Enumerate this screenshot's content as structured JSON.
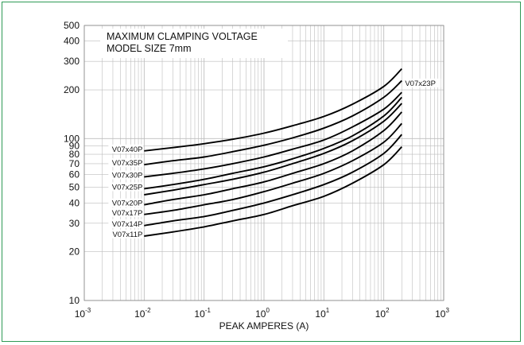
{
  "chart_data": {
    "type": "line",
    "title": "MAXIMUM CLAMPING VOLTAGE",
    "subtitle": "MODEL SIZE 7mm",
    "xlabel": "PEAK AMPERES (A)",
    "ylabel": "",
    "x_scale": "log",
    "y_scale": "log",
    "xlim": [
      0.001,
      1000
    ],
    "ylim": [
      10,
      500
    ],
    "x_ticks": [
      {
        "base": "10",
        "exp": "-3",
        "value": 0.001
      },
      {
        "base": "10",
        "exp": "-2",
        "value": 0.01
      },
      {
        "base": "10",
        "exp": "-1",
        "value": 0.1
      },
      {
        "base": "10",
        "exp": "0",
        "value": 1
      },
      {
        "base": "10",
        "exp": "1",
        "value": 10
      },
      {
        "base": "10",
        "exp": "2",
        "value": 100
      },
      {
        "base": "10",
        "exp": "3",
        "value": 1000
      }
    ],
    "y_ticks": [
      {
        "label": "10",
        "value": 10
      },
      {
        "label": "20",
        "value": 20
      },
      {
        "label": "30",
        "value": 30
      },
      {
        "label": "40",
        "value": 40
      },
      {
        "label": "50",
        "value": 50
      },
      {
        "label": "60",
        "value": 60
      },
      {
        "label": "70",
        "value": 70
      },
      {
        "label": "80",
        "value": 80
      },
      {
        "label": "90",
        "value": 90
      },
      {
        "label": "100",
        "value": 100
      },
      {
        "label": "200",
        "value": 200
      },
      {
        "label": "300",
        "value": 300
      },
      {
        "label": "400",
        "value": 400
      },
      {
        "label": "500",
        "value": 500
      }
    ],
    "grid": true,
    "series": [
      {
        "name": "V07x40P",
        "label_side": "left",
        "x": [
          0.01,
          0.03,
          0.1,
          0.3,
          1,
          3,
          10,
          30,
          100,
          200
        ],
        "y": [
          84,
          88,
          93,
          99,
          108,
          120,
          137,
          163,
          210,
          270
        ]
      },
      {
        "name": "V07x35P",
        "label_side": "left",
        "x": [
          0.01,
          0.03,
          0.1,
          0.3,
          1,
          3,
          10,
          30,
          100,
          200
        ],
        "y": [
          69,
          73,
          77,
          83,
          91,
          101,
          116,
          138,
          180,
          228
        ]
      },
      {
        "name": "V07x30P",
        "label_side": "left",
        "x": [
          0.01,
          0.03,
          0.1,
          0.3,
          1,
          3,
          10,
          30,
          100,
          200
        ],
        "y": [
          58,
          61,
          65,
          70,
          77,
          86,
          98,
          118,
          152,
          193
        ]
      },
      {
        "name": "V07x25P",
        "label_side": "left",
        "x": [
          0.01,
          0.03,
          0.1,
          0.3,
          1,
          3,
          10,
          30,
          100,
          200
        ],
        "y": [
          49,
          52,
          56,
          61,
          67,
          75,
          87,
          104,
          138,
          180
        ]
      },
      {
        "name": "V07x23P",
        "label_side": "right",
        "x": [
          0.01,
          0.03,
          0.1,
          0.3,
          1,
          3,
          10,
          30,
          100,
          200
        ],
        "y": [
          45,
          48,
          52,
          56,
          62,
          70,
          81,
          97,
          128,
          165
        ]
      },
      {
        "name": "V07x20P",
        "label_side": "left",
        "x": [
          0.01,
          0.03,
          0.1,
          0.3,
          1,
          3,
          10,
          30,
          100,
          200
        ],
        "y": [
          39,
          42,
          45,
          49,
          54,
          61,
          70,
          84,
          112,
          146
        ]
      },
      {
        "name": "V07x17P",
        "label_side": "left",
        "x": [
          0.01,
          0.03,
          0.1,
          0.3,
          1,
          3,
          10,
          30,
          100,
          200
        ],
        "y": [
          34,
          36,
          39,
          42,
          47,
          53,
          61,
          73,
          95,
          124
        ]
      },
      {
        "name": "V07x14P",
        "label_side": "left",
        "x": [
          0.01,
          0.03,
          0.1,
          0.3,
          1,
          3,
          10,
          30,
          100,
          200
        ],
        "y": [
          29,
          31,
          33,
          36,
          40,
          45,
          52,
          62,
          81,
          106
        ]
      },
      {
        "name": "V07x11P",
        "label_side": "left",
        "x": [
          0.01,
          0.03,
          0.1,
          0.3,
          1,
          3,
          10,
          30,
          100,
          200
        ],
        "y": [
          25,
          26.5,
          28.5,
          31,
          34,
          38.5,
          44,
          53,
          69,
          89
        ]
      }
    ]
  },
  "colors": {
    "frame": "#2e9a55",
    "grid": "#bdbdbd",
    "curve": "#000000"
  }
}
